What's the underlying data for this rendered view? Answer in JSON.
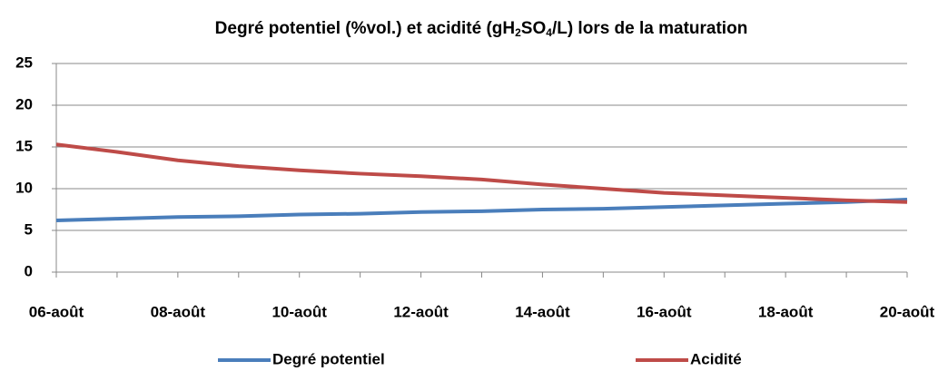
{
  "chart_data": {
    "type": "line",
    "title": [
      "Degré potentiel (%vol.) et  acidité (gH",
      "2",
      "SO",
      "4",
      "/L) lors de la maturation"
    ],
    "categories": [
      "06-août",
      null,
      "08-août",
      null,
      "10-août",
      null,
      "12-août",
      null,
      "14-août",
      null,
      "16-août",
      null,
      "18-août",
      null,
      "20-août"
    ],
    "series": [
      {
        "name": "Degré potentiel",
        "color": "#4a7ebb",
        "values": [
          6.2,
          6.4,
          6.6,
          6.7,
          6.9,
          7.0,
          7.2,
          7.3,
          7.5,
          7.6,
          7.8,
          8.0,
          8.2,
          8.4,
          8.7
        ]
      },
      {
        "name": "Acidité",
        "color": "#be4b48",
        "values": [
          15.3,
          14.4,
          13.4,
          12.7,
          12.2,
          11.8,
          11.5,
          11.1,
          10.5,
          10.0,
          9.5,
          9.2,
          8.9,
          8.6,
          8.4
        ]
      }
    ],
    "ylim": [
      0,
      25
    ],
    "yticks": [
      0,
      5,
      10,
      15,
      20,
      25
    ],
    "grid": true,
    "legend": "bottom"
  }
}
